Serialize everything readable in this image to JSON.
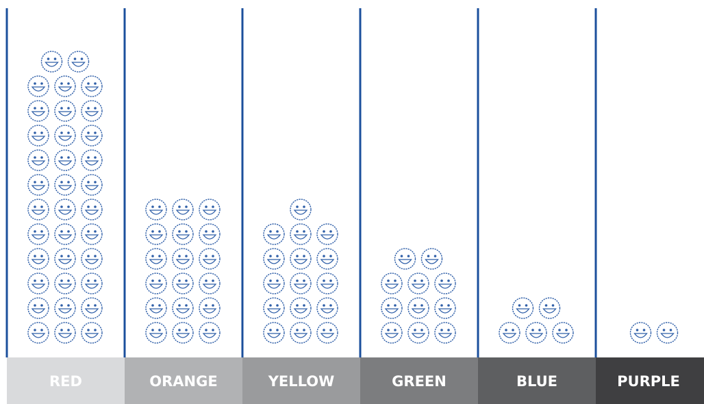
{
  "chart_data": {
    "type": "bar",
    "encoding": "pictograph",
    "icon": "smiley-face-icon",
    "icons_per_row": 3,
    "title": "",
    "xlabel": "",
    "ylabel": "",
    "categories": [
      "RED",
      "ORANGE",
      "YELLOW",
      "GREEN",
      "BLUE",
      "PURPLE"
    ],
    "values": [
      35,
      18,
      16,
      11,
      5,
      2
    ],
    "colors": {
      "divider": "#1b4f9c",
      "icon_stroke": "#2f5fa8",
      "label_backgrounds": [
        "#d9dadc",
        "#b1b2b4",
        "#9a9b9d",
        "#7c7d7f",
        "#5e5f61",
        "#3f3f41"
      ],
      "label_text": "#ffffff"
    }
  }
}
